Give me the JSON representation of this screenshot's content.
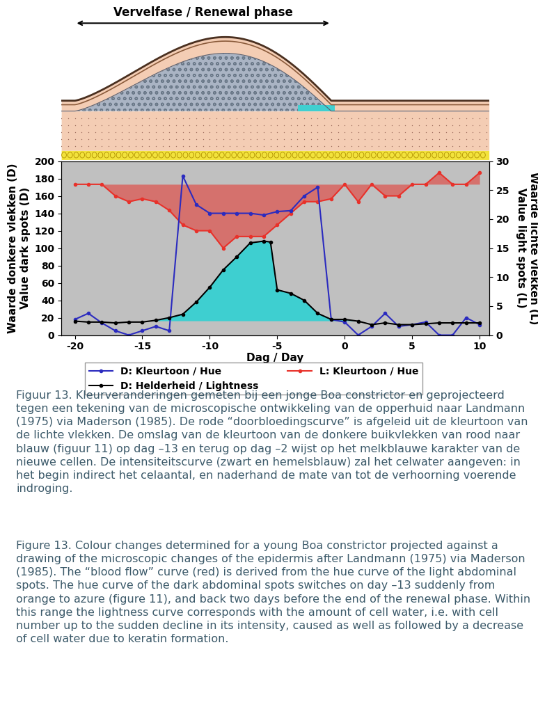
{
  "header": {
    "text": "Vervelfase / Renewal phase",
    "phase": [
      -20,
      -1
    ]
  },
  "chart_data": {
    "type": "line",
    "xlabel": "Dag / Day",
    "ylabel": [
      "Waarde donkere vlekken (D)",
      "Value dark spots (D)"
    ],
    "y2label": [
      "Waarde lichte vlekken (L)",
      "Value light spots (L)"
    ],
    "xlim": [
      -21,
      10.7
    ],
    "xticks": [
      -20,
      -15,
      -10,
      -5,
      0,
      5,
      10
    ],
    "ylim": [
      0,
      200
    ],
    "yticks": [
      0,
      20,
      40,
      60,
      80,
      100,
      120,
      140,
      160,
      180,
      200
    ],
    "y2lim": [
      0,
      30
    ],
    "y2ticks": [
      0,
      5,
      10,
      15,
      20,
      25,
      30
    ],
    "grid": false,
    "legend": "upper center",
    "series": [
      {
        "name": "D: Kleurtoon / Hue",
        "color": "#2b2bbf",
        "marker": "o",
        "line_style": "solid",
        "axis": "y",
        "x": [
          -20,
          -19,
          -18,
          -17,
          -16,
          -15,
          -14,
          -13,
          -12,
          -11,
          -10,
          -9,
          -8,
          -7,
          -6,
          -5,
          -4,
          -3,
          -2,
          -1,
          0,
          1,
          2,
          3,
          4,
          5,
          6,
          7,
          8,
          9,
          10
        ],
        "values": [
          18,
          25,
          14,
          5,
          0,
          5,
          10,
          5,
          183,
          150,
          140,
          140,
          140,
          140,
          138,
          142,
          143,
          160,
          170,
          18,
          15,
          0,
          10,
          25,
          10,
          12,
          15,
          0,
          0,
          20,
          12
        ]
      },
      {
        "name": "L: Kleurtoon / Hue",
        "color": "#e8312a",
        "marker": "o",
        "line_style": "solid",
        "axis": "y2",
        "baseline": 26,
        "x": [
          -20,
          -19,
          -18,
          -17,
          -16,
          -15,
          -14,
          -13,
          -12,
          -11,
          -10,
          -9,
          -8,
          -7,
          -6,
          -5,
          -4,
          -3,
          -2,
          -1,
          0,
          1,
          2,
          3,
          4,
          5,
          6,
          7,
          8,
          9,
          10
        ],
        "values": [
          26,
          26,
          26,
          24,
          23,
          23.5,
          23,
          21.5,
          19,
          18,
          18,
          15,
          17,
          17,
          17,
          19,
          21,
          23,
          23,
          23.5,
          26,
          23,
          26,
          24,
          24,
          26,
          26,
          28,
          26,
          26,
          28
        ]
      },
      {
        "name": "D: Helderheid / Lightness",
        "color": "#000000",
        "marker": "o",
        "line_style": "solid",
        "axis": "y",
        "baseline": 16,
        "x": [
          -20,
          -19,
          -18,
          -17,
          -16,
          -15,
          -14,
          -13,
          -12,
          -11,
          -10,
          -9,
          -8,
          -7,
          -6,
          -5.5,
          -5,
          -4,
          -3,
          -2,
          -1,
          0,
          1,
          2,
          3,
          4,
          5,
          6,
          7,
          8,
          9,
          10
        ],
        "values": [
          16,
          15,
          15,
          14,
          15,
          15,
          17,
          20,
          24,
          38,
          55,
          75,
          90,
          106,
          108,
          107,
          52,
          48,
          40,
          25,
          18,
          18,
          16,
          12,
          14,
          12,
          12,
          13,
          14,
          14,
          14,
          14
        ]
      }
    ]
  },
  "caption": {
    "nl": "Figuur 13. Kleurveranderingen gemeten bij een jonge Boa constrictor en geprojecteerd tegen een tekening van de microscopische ontwikkeling van de opperhuid naar Landmann (1975) via Maderson (1985). De rode “doorbloedingscurve” is afgeleid uit de kleurtoon van de lichte vlekken. De omslag van de kleurtoon van de donkere buikvlekken van rood naar blauw (figuur 11) op dag –13 en terug op dag –2 wijst op het melkblauwe karakter van de nieuwe cellen. De intensiteitscurve (zwart en hemelsblauw) zal het celwater aangeven: in het begin indirect het celaantal, en naderhand de mate van tot de verhoorning voerende indroging.",
    "en": "Figure 13. Colour changes determined for a young Boa constrictor projected against a drawing of the microscopic changes of the epidermis after Landmann (1975) via Maderson (1985). The “blood flow” curve (red) is derived from the hue curve of the light abdominal spots. The hue curve of the dark abdominal spots switches on day –13 suddenly from orange to azure (figure 11), and back two days before the end of the renewal phase. Within this range the lightness curve corresponds with the amount of cell water, i.e. with cell number up to the sudden decline in its intensity, caused as well as followed by a decrease of cell water due to keratin formation."
  }
}
